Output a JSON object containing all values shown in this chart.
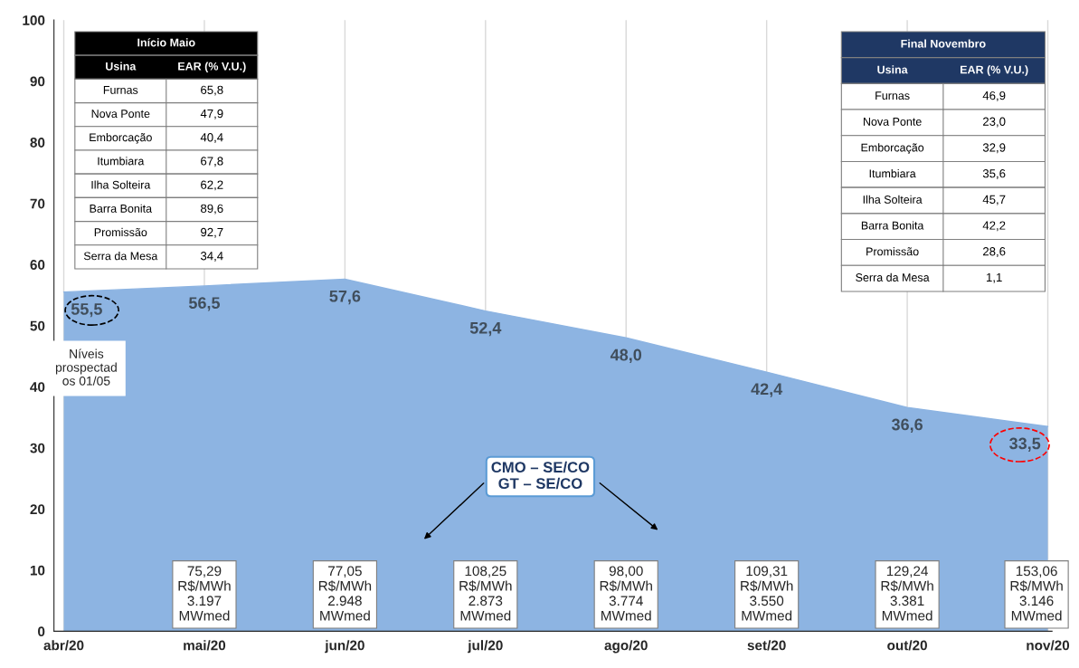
{
  "chart_data": {
    "type": "area",
    "categories": [
      "abr/20",
      "mai/20",
      "jun/20",
      "jul/20",
      "ago/20",
      "set/20",
      "out/20",
      "nov/20"
    ],
    "series": [
      {
        "color": "#8db4e2",
        "values": [
          55.5,
          56.5,
          57.6,
          52.4,
          48.0,
          42.4,
          36.6,
          33.5
        ],
        "value_labels": [
          "55,5",
          "56,5",
          "57,6",
          "52,4",
          "48,0",
          "42,4",
          "36,6",
          "33,5"
        ]
      }
    ],
    "ylim": [
      0,
      100
    ],
    "yticks": [
      0,
      10,
      20,
      30,
      40,
      50,
      60,
      70,
      80,
      90,
      100
    ],
    "grid": "x",
    "legend": false,
    "annotations": [
      "Início Maio\nUsina\tEAR (% V.U.)\nFurnas\t65,8\nNova Ponte\t47,9\nEmborcação\t40,4\nItumbiara\t67,8\nIlha Solteira\t62,2\nBarra Bonita\t89,6\nPromissão\t92,7\nSerra da Mesa\t34,4",
      "Final Novembro\nUsina\tEAR (% V.U.)\nFurnas\t46,9\nNova Ponte\t23,0\nEmborcação\t32,9\nItumbiara\t35,6\nIlha Solteira\t45,7\nBarra Bonita\t42,2\nPromissão\t28,6\nSerra da Mesa\t1,1",
      "Níveis\nprospectad\nos 01/05",
      "CMO – SE/CO\nGT – SE/CO",
      "75,29\nR$/MWh\n3.197\nMWmed",
      "77,05\nR$/MWh\n2.948\nMWmed",
      "108,25\nR$/MWh\n2.873\nMWmed",
      "98,00\nR$/MWh\n3.774\nMWmed",
      "109,31\nR$/MWh\n3.550\nMWmed",
      "129,24\nR$/MWh\n3.381\nMWmed",
      "153,06\nR$/MWh\n3.146\nMWmed"
    ]
  }
}
